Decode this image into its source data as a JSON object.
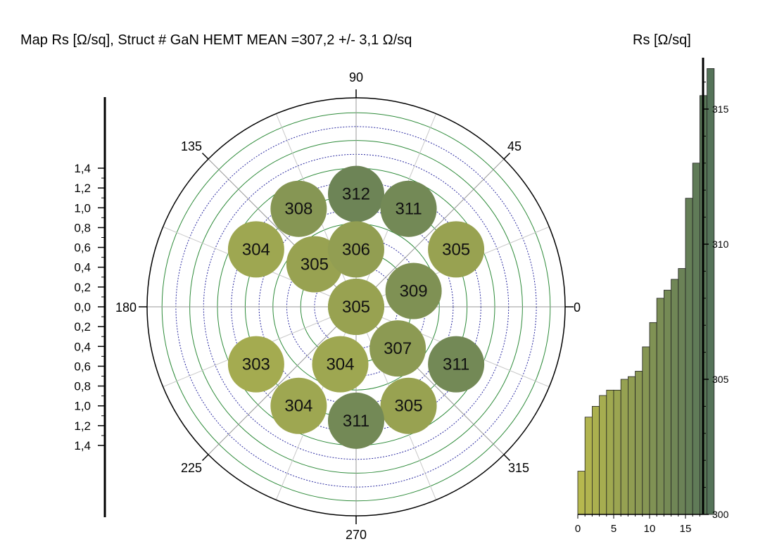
{
  "title": "Map Rs [Ω/sq],   Struct # GaN HEMT  MEAN =307,2 +/- 3,1 Ω/sq",
  "side_title": "Rs [Ω/sq]",
  "chart_data": [
    {
      "type": "scatter",
      "subtype": "polar-wafer-map",
      "y_axis": {
        "tick_labels": [
          "1,4",
          "1,2",
          "1,0",
          "0,8",
          "0,6",
          "0,4",
          "0,2",
          "0,0",
          "0,2",
          "0,4",
          "0,6",
          "0,8",
          "1,0",
          "1,2",
          "1,4"
        ],
        "range": [
          -1.4,
          1.4
        ]
      },
      "angle_labels": [
        "0",
        "45",
        "90",
        "135",
        "180",
        "225",
        "270",
        "315"
      ],
      "color_range": [
        300,
        316
      ],
      "color_low": "#b6b84e",
      "color_high": "#557359",
      "points": [
        {
          "x": 0.0,
          "y": 1.14,
          "value": 312
        },
        {
          "x": -0.58,
          "y": 0.99,
          "value": 308
        },
        {
          "x": 0.53,
          "y": 0.99,
          "value": 311
        },
        {
          "x": -1.01,
          "y": 0.58,
          "value": 304
        },
        {
          "x": 1.01,
          "y": 0.58,
          "value": 305
        },
        {
          "x": -0.42,
          "y": 0.43,
          "value": 305
        },
        {
          "x": 0.0,
          "y": 0.58,
          "value": 306
        },
        {
          "x": 0.58,
          "y": 0.16,
          "value": 309
        },
        {
          "x": 0.0,
          "y": 0.0,
          "value": 305
        },
        {
          "x": 0.42,
          "y": -0.42,
          "value": 307
        },
        {
          "x": -1.01,
          "y": -0.58,
          "value": 303
        },
        {
          "x": -0.16,
          "y": -0.58,
          "value": 304
        },
        {
          "x": 1.01,
          "y": -0.58,
          "value": 311
        },
        {
          "x": -0.58,
          "y": -1.0,
          "value": 304
        },
        {
          "x": 0.53,
          "y": -1.0,
          "value": 305
        },
        {
          "x": 0.0,
          "y": -1.15,
          "value": 311
        }
      ]
    },
    {
      "type": "bar",
      "x_tick_labels": [
        "0",
        "5",
        "10",
        "15"
      ],
      "y_tick_labels": [
        "315",
        "310",
        "305",
        "300"
      ],
      "ylim": [
        300,
        317
      ],
      "values": [
        301.6,
        303.6,
        304.0,
        304.4,
        304.6,
        304.6,
        305.0,
        305.1,
        305.3,
        306.2,
        307.1,
        308.0,
        308.3,
        308.7,
        309.1,
        311.7,
        313.0,
        315.5,
        316.5
      ]
    }
  ]
}
